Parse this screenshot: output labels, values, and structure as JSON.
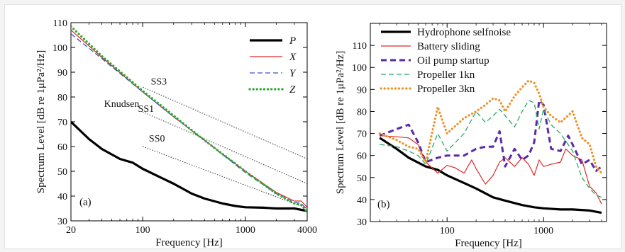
{
  "chart_data": [
    {
      "type": "line",
      "panel_label": "(a)",
      "xlabel": "Frequency [Hz]",
      "ylabel": "Spectrum Level [dB re 1μPa²/Hz]",
      "xscale": "log",
      "xlim": [
        20,
        4000
      ],
      "ylim": [
        30,
        110
      ],
      "xticks": [
        {
          "v": 20,
          "label": "20"
        },
        {
          "v": 100,
          "label": "100"
        },
        {
          "v": 1000,
          "label": "1000"
        },
        {
          "v": 4000,
          "label": "4000"
        }
      ],
      "yticks": [
        30,
        40,
        50,
        60,
        70,
        80,
        90,
        100,
        110
      ],
      "legend_position": "top-right",
      "series": [
        {
          "name": "P",
          "color": "#000000",
          "style": "solid-thick",
          "x": [
            20,
            30,
            40,
            60,
            80,
            100,
            150,
            200,
            300,
            400,
            600,
            800,
            1000,
            1500,
            2000,
            3000,
            4000
          ],
          "y": [
            70,
            63,
            59,
            55,
            53.5,
            51,
            47.5,
            45,
            41,
            39,
            37,
            36,
            35.5,
            35.3,
            35,
            35,
            34
          ]
        },
        {
          "name": "X",
          "color": "#dd2a2a",
          "style": "solid",
          "x": [
            20,
            40,
            100,
            200,
            400,
            1000,
            2000,
            3000,
            3500,
            4000
          ],
          "y": [
            107,
            96,
            82,
            72,
            62.5,
            50,
            41.5,
            38,
            38,
            35.5
          ]
        },
        {
          "name": "Y",
          "color": "#3a50c8",
          "style": "dashed",
          "x": [
            20,
            40,
            100,
            200,
            400,
            1000,
            2000,
            3000,
            3500,
            4000
          ],
          "y": [
            105.5,
            95.5,
            82,
            72,
            62.5,
            49.5,
            41,
            37.5,
            37,
            34.5
          ]
        },
        {
          "name": "Z",
          "color": "#2da82d",
          "style": "dotted-thick",
          "x": [
            20,
            40,
            100,
            200,
            400,
            1000,
            2000,
            3000,
            3500,
            4000
          ],
          "y": [
            108.5,
            96.5,
            82.5,
            72.5,
            62.5,
            50,
            41,
            37,
            36.5,
            33.5
          ]
        }
      ],
      "reference_lines": [
        {
          "label": "SS3",
          "x": [
            100,
            4000
          ],
          "y": [
            84,
            55
          ]
        },
        {
          "label": "SS1",
          "x": [
            100,
            4000
          ],
          "y": [
            74,
            45
          ]
        },
        {
          "label": "SS0",
          "x": [
            100,
            4000
          ],
          "y": [
            60,
            35
          ]
        }
      ],
      "annotations": [
        {
          "text": "Knudsen",
          "x": 42,
          "y": 76
        },
        {
          "text": "SS3",
          "x": 120,
          "y": 85
        },
        {
          "text": "SS1",
          "x": 90,
          "y": 74
        },
        {
          "text": "SS0",
          "x": 115,
          "y": 62
        }
      ]
    },
    {
      "type": "line",
      "panel_label": "(b)",
      "xlabel": "Frequency [Hz]",
      "ylabel": "Spectrum Level [dB re 1μPa²/Hz]",
      "xscale": "log",
      "xlim": [
        16,
        4500
      ],
      "ylim": [
        30,
        120
      ],
      "xticks": [
        {
          "v": 100,
          "label": "100"
        },
        {
          "v": 1000,
          "label": "1000"
        }
      ],
      "yticks": [
        30,
        40,
        50,
        60,
        70,
        80,
        90,
        100,
        110
      ],
      "legend_position": "top-left",
      "series": [
        {
          "name": "Hydrophone selfnoise",
          "color": "#000000",
          "style": "solid-thick",
          "x": [
            20,
            30,
            40,
            60,
            80,
            100,
            150,
            200,
            300,
            400,
            600,
            800,
            1000,
            1500,
            2000,
            3000,
            4000
          ],
          "y": [
            68,
            63,
            59,
            55,
            53.5,
            51,
            47.5,
            45,
            41,
            39.5,
            37.5,
            36.5,
            36,
            35.5,
            35.5,
            35,
            34
          ]
        },
        {
          "name": "Battery sliding",
          "color": "#dd2a2a",
          "style": "solid",
          "x": [
            20,
            30,
            40,
            50,
            60,
            80,
            100,
            120,
            150,
            180,
            200,
            250,
            300,
            350,
            400,
            500,
            600,
            700,
            800,
            900,
            1000,
            1200,
            1500,
            1700,
            2000,
            2500,
            3000,
            3500,
            4000
          ],
          "y": [
            69,
            68.5,
            68,
            65,
            57,
            52,
            55.5,
            54.5,
            52,
            58,
            54,
            47,
            51,
            57,
            59,
            55,
            59,
            56,
            51,
            58,
            55,
            56,
            57,
            63,
            60,
            58,
            46,
            43,
            38
          ]
        },
        {
          "name": "Oil pump startup",
          "color": "#5a2aa8",
          "style": "dashed-thick",
          "x": [
            20,
            30,
            40,
            50,
            60,
            80,
            100,
            150,
            200,
            250,
            300,
            350,
            400,
            500,
            600,
            700,
            800,
            900,
            1000,
            1200,
            1500,
            1800,
            2000,
            2500,
            3000,
            3500,
            4000
          ],
          "y": [
            69,
            72,
            74,
            66,
            57,
            59,
            60,
            60,
            63,
            64,
            64,
            71,
            55,
            63,
            58,
            60,
            66,
            85,
            83,
            63,
            62,
            69,
            65,
            56,
            58,
            53,
            55
          ]
        },
        {
          "name": "Propeller 1kn",
          "color": "#2da86a",
          "style": "dashed",
          "x": [
            20,
            30,
            40,
            50,
            60,
            80,
            100,
            150,
            200,
            250,
            300,
            350,
            400,
            500,
            600,
            700,
            800,
            900,
            1000,
            1200,
            1500,
            2000,
            2500,
            3000,
            3500,
            4000
          ],
          "y": [
            65,
            64,
            62,
            60,
            56,
            70,
            62,
            70,
            80,
            75,
            78,
            81,
            78,
            73,
            80,
            85,
            84,
            72,
            81,
            74,
            70,
            62,
            50,
            45,
            42,
            41
          ]
        },
        {
          "name": "Propeller 3kn",
          "color": "#f09020",
          "style": "dotted-thick",
          "x": [
            20,
            30,
            40,
            50,
            60,
            80,
            100,
            150,
            200,
            250,
            300,
            350,
            400,
            500,
            600,
            700,
            800,
            900,
            1000,
            1200,
            1500,
            2000,
            2500,
            3000,
            3500,
            4000
          ],
          "y": [
            70,
            67,
            64,
            63,
            57,
            82,
            70,
            77,
            80,
            83,
            86,
            85,
            80,
            87,
            91,
            94,
            93,
            88,
            82,
            78,
            75,
            80,
            68,
            65,
            55,
            52
          ]
        }
      ]
    }
  ]
}
